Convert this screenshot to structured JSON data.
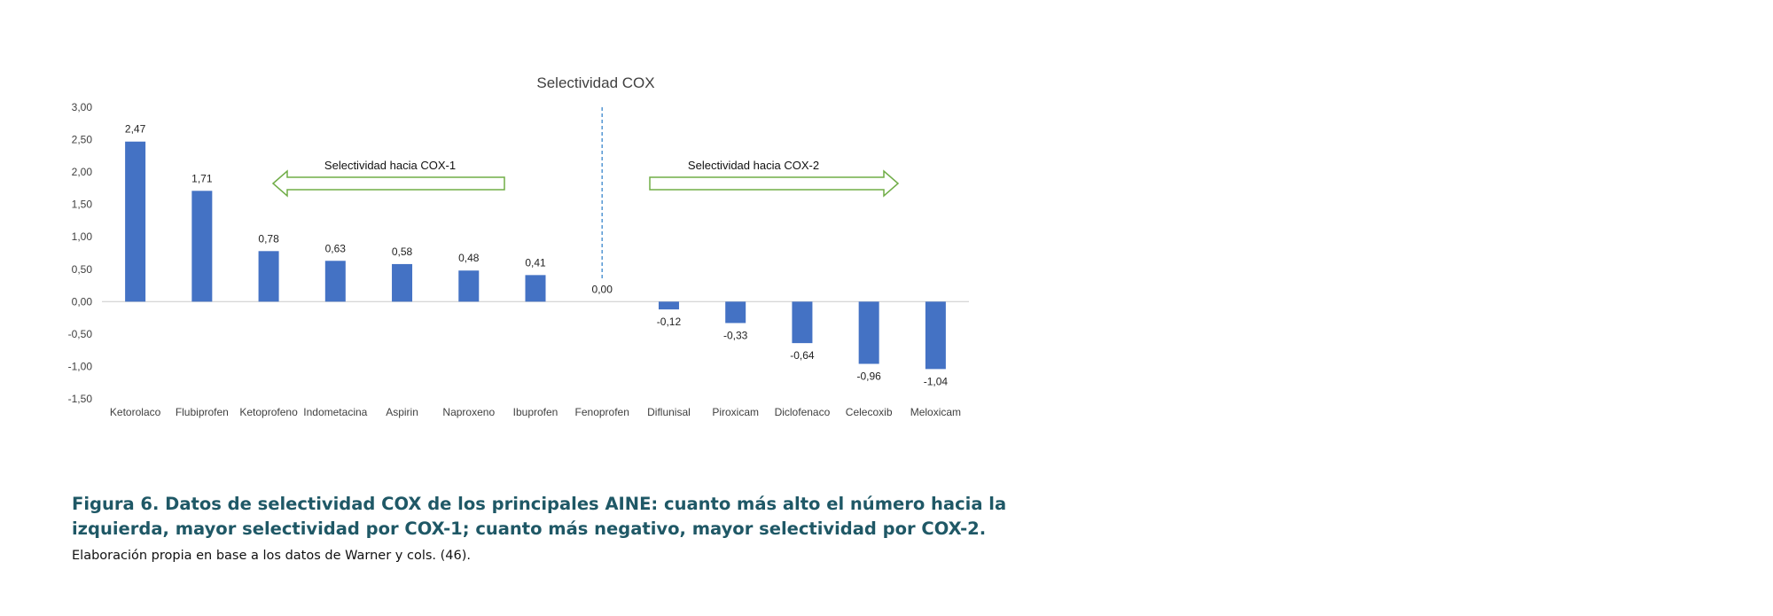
{
  "chart_data": {
    "type": "bar",
    "title": "Selectividad COX",
    "xlabel": "",
    "ylabel": "",
    "ylim": [
      -1.5,
      3.0
    ],
    "yticks": [
      "3,00",
      "2,50",
      "2,00",
      "1,50",
      "1,00",
      "0,50",
      "0,00",
      "-0,50",
      "-1,00",
      "-1,50"
    ],
    "categories": [
      "Ketorolaco",
      "Flubiprofen",
      "Ketoprofeno",
      "Indometacina",
      "Aspirin",
      "Naproxeno",
      "Ibuprofen",
      "Fenoprofen",
      "Diflunisal",
      "Piroxicam",
      "Diclofenaco",
      "Celecoxib",
      "Meloxicam"
    ],
    "values": [
      2.47,
      1.71,
      0.78,
      0.63,
      0.58,
      0.48,
      0.41,
      0.0,
      -0.12,
      -0.33,
      -0.64,
      -0.96,
      -1.04
    ],
    "value_labels": [
      "2,47",
      "1,71",
      "0,78",
      "0,63",
      "0,58",
      "0,48",
      "0,41",
      "0,00",
      "-0,12",
      "-0,33",
      "-0,64",
      "-0,96",
      "-1,04"
    ],
    "grid": false,
    "bar_color": "#4472c4",
    "annotations": {
      "left_arrow_label": "Selectividad hacia COX-1",
      "right_arrow_label": "Selectividad hacia COX-2",
      "arrow_color": "#70ad47",
      "divider_color": "#5b9bd5"
    }
  },
  "caption": {
    "title": "Figura 6. Datos de selectividad COX de los principales AINE: cuanto más alto el número hacia la izquierda, mayor selectividad por COX-1; cuanto más negativo, mayor selectividad por COX-2.",
    "source": "Elaboración propia en base a los datos de Warner y cols. (46)."
  }
}
